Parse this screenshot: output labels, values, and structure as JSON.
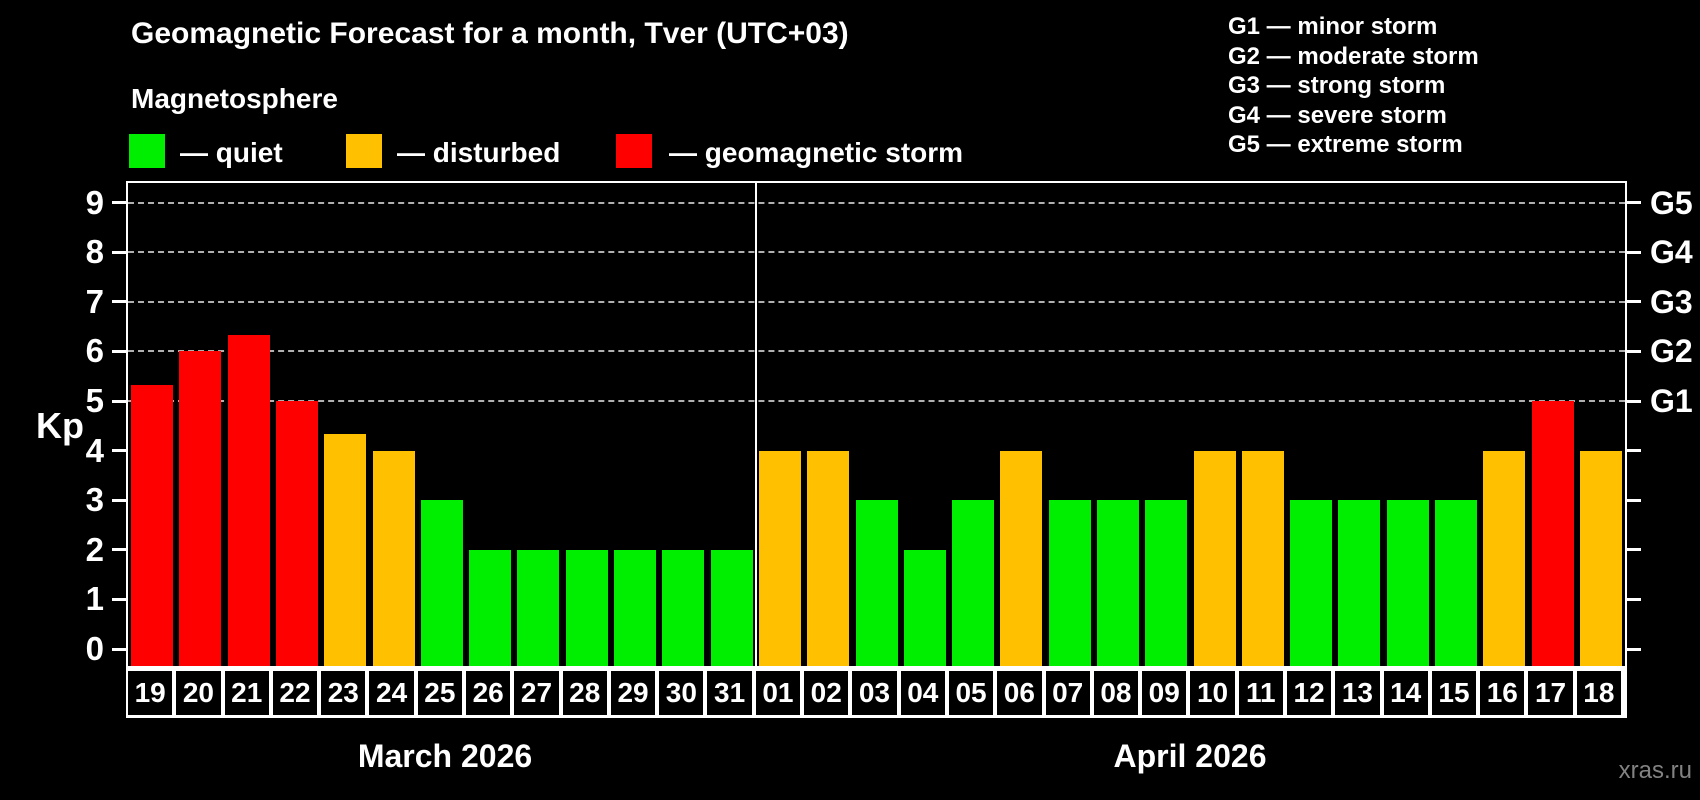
{
  "header": {
    "title": "Geomagnetic Forecast for a month, Tver (UTC+03)",
    "subtitle": "Magnetosphere"
  },
  "legend": {
    "items": [
      {
        "status": "quiet",
        "label": "— quiet"
      },
      {
        "status": "disturbed",
        "label": "— disturbed"
      },
      {
        "status": "storm",
        "label": "— geomagnetic storm"
      }
    ]
  },
  "g_scale_legend": [
    "G1 — minor storm",
    "G2 — moderate storm",
    "G3 — strong storm",
    "G4 — severe storm",
    "G5 — extreme storm"
  ],
  "watermark": "xras.ru",
  "chart_data": {
    "type": "bar",
    "ylabel": "Kp",
    "ylim": [
      0,
      9.4
    ],
    "grid": "dashed horizontal lines at Kp 5-9 only",
    "y_ticks": [
      0,
      1,
      2,
      3,
      4,
      5,
      6,
      7,
      8,
      9
    ],
    "grid_levels_kp": [
      5,
      6,
      7,
      8,
      9
    ],
    "right_axis": [
      {
        "label": "G1",
        "kp": 5
      },
      {
        "label": "G2",
        "kp": 6
      },
      {
        "label": "G3",
        "kp": 7
      },
      {
        "label": "G4",
        "kp": 8
      },
      {
        "label": "G5",
        "kp": 9
      }
    ],
    "months": [
      {
        "label": "March 2026",
        "n_days": 13
      },
      {
        "label": "April 2026",
        "n_days": 18
      }
    ],
    "status_colors": {
      "quiet": "#00ee00",
      "disturbed": "#ffc000",
      "storm": "#ff0000"
    },
    "bars": [
      {
        "day": "19",
        "kp": 5.33,
        "status": "storm"
      },
      {
        "day": "20",
        "kp": 6.0,
        "status": "storm"
      },
      {
        "day": "21",
        "kp": 6.33,
        "status": "storm"
      },
      {
        "day": "22",
        "kp": 5.0,
        "status": "storm"
      },
      {
        "day": "23",
        "kp": 4.33,
        "status": "disturbed"
      },
      {
        "day": "24",
        "kp": 4.0,
        "status": "disturbed"
      },
      {
        "day": "25",
        "kp": 3.0,
        "status": "quiet"
      },
      {
        "day": "26",
        "kp": 2.0,
        "status": "quiet"
      },
      {
        "day": "27",
        "kp": 2.0,
        "status": "quiet"
      },
      {
        "day": "28",
        "kp": 2.0,
        "status": "quiet"
      },
      {
        "day": "29",
        "kp": 2.0,
        "status": "quiet"
      },
      {
        "day": "30",
        "kp": 2.0,
        "status": "quiet"
      },
      {
        "day": "31",
        "kp": 2.0,
        "status": "quiet"
      },
      {
        "day": "01",
        "kp": 4.0,
        "status": "disturbed"
      },
      {
        "day": "02",
        "kp": 4.0,
        "status": "disturbed"
      },
      {
        "day": "03",
        "kp": 3.0,
        "status": "quiet"
      },
      {
        "day": "04",
        "kp": 2.0,
        "status": "quiet"
      },
      {
        "day": "05",
        "kp": 3.0,
        "status": "quiet"
      },
      {
        "day": "06",
        "kp": 4.0,
        "status": "disturbed"
      },
      {
        "day": "07",
        "kp": 3.0,
        "status": "quiet"
      },
      {
        "day": "08",
        "kp": 3.0,
        "status": "quiet"
      },
      {
        "day": "09",
        "kp": 3.0,
        "status": "quiet"
      },
      {
        "day": "10",
        "kp": 4.0,
        "status": "disturbed"
      },
      {
        "day": "11",
        "kp": 4.0,
        "status": "disturbed"
      },
      {
        "day": "12",
        "kp": 3.0,
        "status": "quiet"
      },
      {
        "day": "13",
        "kp": 3.0,
        "status": "quiet"
      },
      {
        "day": "14",
        "kp": 3.0,
        "status": "quiet"
      },
      {
        "day": "15",
        "kp": 3.0,
        "status": "quiet"
      },
      {
        "day": "16",
        "kp": 4.0,
        "status": "disturbed"
      },
      {
        "day": "17",
        "kp": 5.0,
        "status": "storm"
      },
      {
        "day": "18",
        "kp": 4.0,
        "status": "disturbed"
      }
    ]
  }
}
